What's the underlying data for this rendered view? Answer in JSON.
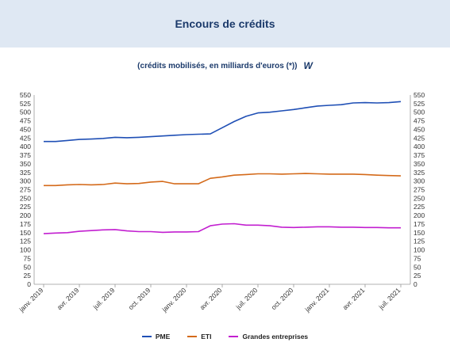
{
  "header": {
    "title": "Encours de crédits"
  },
  "subtitle": {
    "text": "(crédits mobilisés, en milliards d'euros (*))",
    "icon_label": "W",
    "icon": "w-brand-icon"
  },
  "chart_data": {
    "type": "line",
    "x": [
      "2019-01",
      "2019-02",
      "2019-03",
      "2019-04",
      "2019-05",
      "2019-06",
      "2019-07",
      "2019-08",
      "2019-09",
      "2019-10",
      "2019-11",
      "2019-12",
      "2020-01",
      "2020-02",
      "2020-03",
      "2020-04",
      "2020-05",
      "2020-06",
      "2020-07",
      "2020-08",
      "2020-09",
      "2020-10",
      "2020-11",
      "2020-12",
      "2021-01",
      "2021-02",
      "2021-03",
      "2021-04",
      "2021-05",
      "2021-06",
      "2021-07"
    ],
    "x_tick_labels": [
      "janv. 2019",
      "avr. 2019",
      "juil. 2019",
      "oct. 2019",
      "janv. 2020",
      "avr. 2020",
      "juil. 2020",
      "oct. 2020",
      "janv. 2021",
      "avr. 2021",
      "juil. 2021"
    ],
    "series": [
      {
        "name": "PME",
        "color": "#1f4fb5",
        "values": [
          415,
          415,
          418,
          421,
          422,
          424,
          427,
          426,
          427,
          429,
          431,
          433,
          435,
          436,
          437,
          455,
          473,
          488,
          498,
          500,
          504,
          508,
          513,
          518,
          520,
          522,
          527,
          528,
          527,
          528,
          531
        ]
      },
      {
        "name": "ETI",
        "color": "#d46a1a",
        "values": [
          287,
          287,
          289,
          290,
          289,
          290,
          294,
          292,
          293,
          297,
          299,
          292,
          292,
          292,
          308,
          312,
          317,
          319,
          321,
          321,
          320,
          321,
          322,
          321,
          320,
          320,
          320,
          319,
          317,
          316,
          315
        ]
      },
      {
        "name": "Grandes entreprises",
        "color": "#c21fd0",
        "values": [
          147,
          149,
          150,
          154,
          156,
          158,
          159,
          155,
          153,
          153,
          151,
          152,
          152,
          153,
          170,
          175,
          176,
          172,
          172,
          170,
          166,
          165,
          166,
          167,
          167,
          166,
          166,
          165,
          165,
          164,
          164
        ]
      }
    ],
    "ylim": [
      0,
      550
    ],
    "yticks": [
      0,
      25,
      50,
      75,
      100,
      125,
      150,
      175,
      200,
      225,
      250,
      275,
      300,
      325,
      350,
      375,
      400,
      425,
      450,
      475,
      500,
      525,
      550
    ],
    "grid": false,
    "legend_position": "bottom"
  }
}
